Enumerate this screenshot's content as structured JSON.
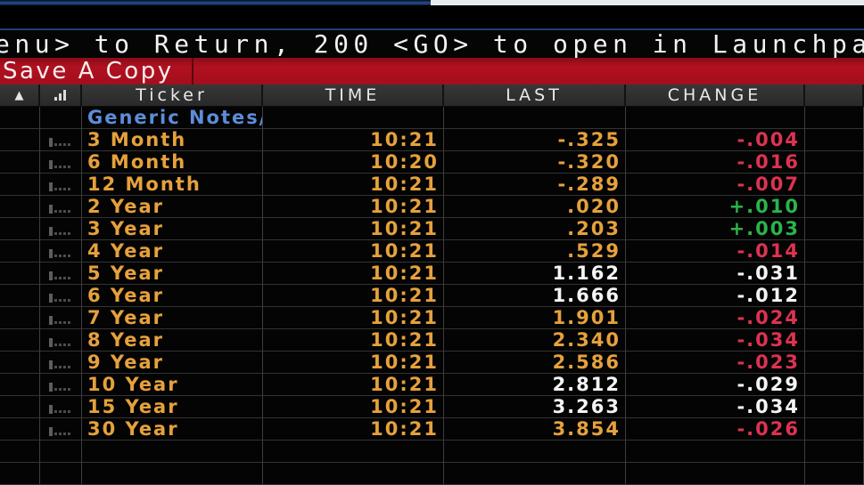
{
  "message_bar": {
    "text": "enu> to Return, 200 <GO> to open in Launchpa"
  },
  "toolbar": {
    "save_label": "Save A Copy"
  },
  "table": {
    "headers": {
      "col1_icon": "alert-triangle",
      "col2_icon": "bar-chart",
      "ticker": "Ticker",
      "time": "TIME",
      "last": "LAST",
      "change": "CHANGE"
    },
    "group_label": "Generic Notes/Bond",
    "rows": [
      {
        "ticker": "3 Month",
        "time": "10:21",
        "last": "-.325",
        "change": "-.004",
        "last_color": "amber",
        "change_color": "red"
      },
      {
        "ticker": "6 Month",
        "time": "10:20",
        "last": "-.320",
        "change": "-.016",
        "last_color": "amber",
        "change_color": "red"
      },
      {
        "ticker": "12 Month",
        "time": "10:21",
        "last": "-.289",
        "change": "-.007",
        "last_color": "amber",
        "change_color": "red"
      },
      {
        "ticker": "2 Year",
        "time": "10:21",
        "last": ".020",
        "change": "+.010",
        "last_color": "amber",
        "change_color": "green"
      },
      {
        "ticker": "3 Year",
        "time": "10:21",
        "last": ".203",
        "change": "+.003",
        "last_color": "amber",
        "change_color": "green"
      },
      {
        "ticker": "4 Year",
        "time": "10:21",
        "last": ".529",
        "change": "-.014",
        "last_color": "amber",
        "change_color": "red"
      },
      {
        "ticker": "5 Year",
        "time": "10:21",
        "last": "1.162",
        "change": "-.031",
        "last_color": "white",
        "change_color": "white"
      },
      {
        "ticker": "6 Year",
        "time": "10:21",
        "last": "1.666",
        "change": "-.012",
        "last_color": "white",
        "change_color": "white"
      },
      {
        "ticker": "7 Year",
        "time": "10:21",
        "last": "1.901",
        "change": "-.024",
        "last_color": "amber",
        "change_color": "red"
      },
      {
        "ticker": "8 Year",
        "time": "10:21",
        "last": "2.340",
        "change": "-.034",
        "last_color": "amber",
        "change_color": "red"
      },
      {
        "ticker": "9 Year",
        "time": "10:21",
        "last": "2.586",
        "change": "-.023",
        "last_color": "amber",
        "change_color": "red"
      },
      {
        "ticker": "10 Year",
        "time": "10:21",
        "last": "2.812",
        "change": "-.029",
        "last_color": "white",
        "change_color": "white"
      },
      {
        "ticker": "15 Year",
        "time": "10:21",
        "last": "3.263",
        "change": "-.034",
        "last_color": "white",
        "change_color": "white"
      },
      {
        "ticker": "30 Year",
        "time": "10:21",
        "last": "3.854",
        "change": "-.026",
        "last_color": "amber",
        "change_color": "red"
      }
    ],
    "empty_row_count": 2,
    "colors": {
      "amber": "#e6a13c",
      "red": "#dd3350",
      "green": "#2ab44c",
      "white": "#f4f4f4",
      "blue": "#5c8dd9"
    }
  }
}
